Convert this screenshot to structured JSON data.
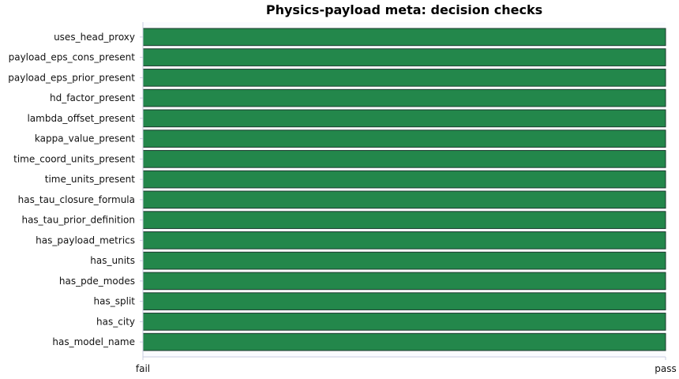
{
  "chart_data": {
    "type": "bar",
    "orientation": "horizontal",
    "title": "Physics-payload meta: decision checks",
    "xlabel": "",
    "ylabel": "",
    "xlim": [
      0,
      1
    ],
    "x_ticks": [
      0,
      1
    ],
    "x_tick_labels": [
      "fail",
      "pass"
    ],
    "categories": [
      "uses_head_proxy",
      "payload_eps_cons_present",
      "payload_eps_prior_present",
      "hd_factor_present",
      "lambda_offset_present",
      "kappa_value_present",
      "time_coord_units_present",
      "time_units_present",
      "has_tau_closure_formula",
      "has_tau_prior_definition",
      "has_payload_metrics",
      "has_units",
      "has_pde_modes",
      "has_split",
      "has_city",
      "has_model_name"
    ],
    "values": [
      1,
      1,
      1,
      1,
      1,
      1,
      1,
      1,
      1,
      1,
      1,
      1,
      1,
      1,
      1,
      1
    ],
    "colors": {
      "bar": "#23874b",
      "bar_edge": "#1b3a2e",
      "plot_background": "#fafbff",
      "axis": "#c8cce0"
    },
    "grid": false,
    "legend": "none"
  }
}
